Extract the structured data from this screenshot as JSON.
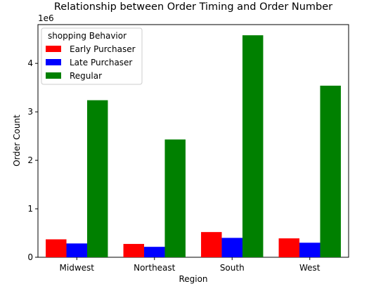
{
  "chart_data": {
    "type": "bar",
    "title": "Relationship between Order Timing and Order Number",
    "xlabel": "Region",
    "ylabel": "Order Count",
    "offset_text": "1e6",
    "categories": [
      "Midwest",
      "Northeast",
      "South",
      "West"
    ],
    "ylim": [
      0,
      4800000
    ],
    "yticks": [
      0,
      1000000,
      2000000,
      3000000,
      4000000
    ],
    "ytick_labels": [
      "0",
      "1",
      "2",
      "3",
      "4"
    ],
    "grid": false,
    "legend": {
      "title": "shopping Behavior",
      "placement": "top-left"
    },
    "series": [
      {
        "name": "Early Purchaser",
        "color": "#ff0000",
        "values": [
          370000,
          275000,
          520000,
          390000
        ]
      },
      {
        "name": "Late Purchaser",
        "color": "#0000ff",
        "values": [
          285000,
          215000,
          400000,
          300000
        ]
      },
      {
        "name": "Regular",
        "color": "#008000",
        "values": [
          3240000,
          2430000,
          4580000,
          3540000
        ]
      }
    ]
  }
}
